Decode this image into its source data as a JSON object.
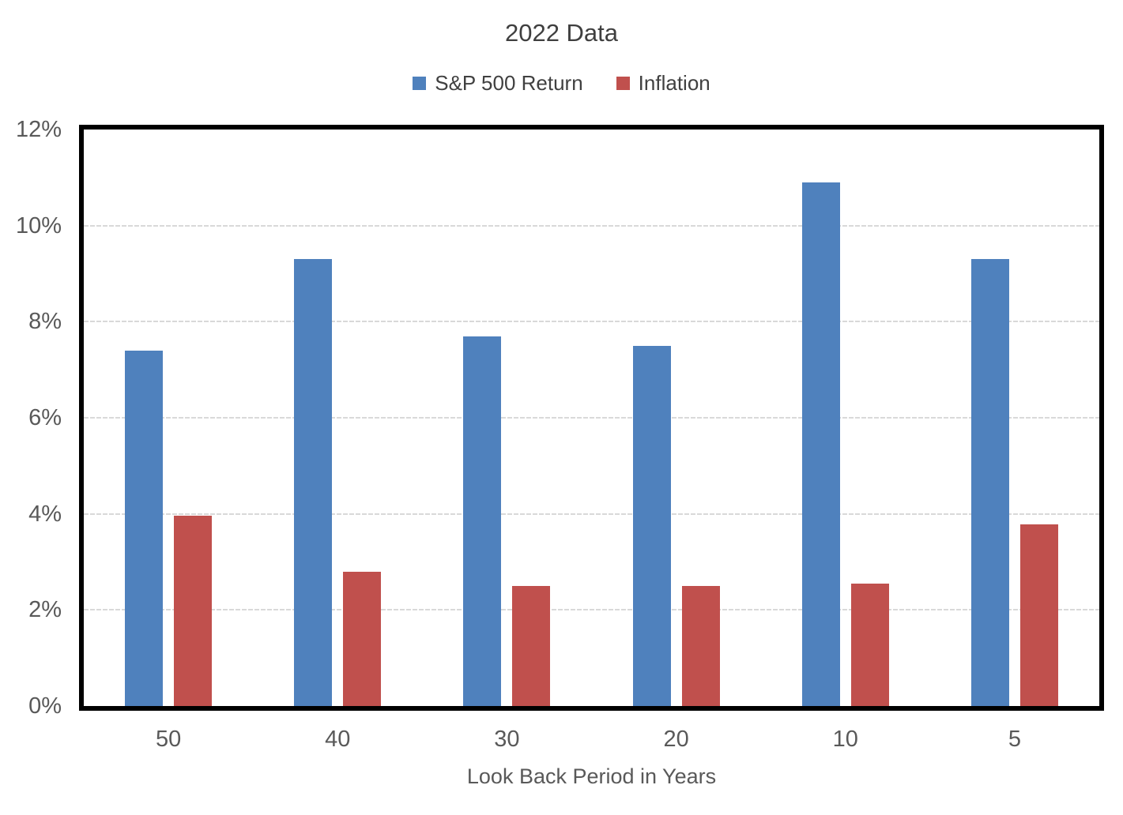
{
  "chart_data": {
    "type": "bar",
    "title": "2022 Data",
    "categories": [
      "50",
      "40",
      "30",
      "20",
      "10",
      "5"
    ],
    "series": [
      {
        "name": "S&P 500 Return",
        "color": "#4F81BD",
        "values": [
          7.4,
          9.3,
          7.7,
          7.5,
          10.9,
          9.3
        ]
      },
      {
        "name": "Inflation",
        "color": "#C0504D",
        "values": [
          3.97,
          2.8,
          2.5,
          2.5,
          2.55,
          3.78
        ]
      }
    ],
    "xlabel": "Look Back Period in Years",
    "ylabel": "",
    "ylim": [
      0,
      12
    ],
    "ytick_step": 2,
    "ytick_labels": [
      "0%",
      "2%",
      "4%",
      "6%",
      "8%",
      "10%",
      "12%"
    ],
    "grid": true,
    "legend_position": "top",
    "colors": {
      "title_text": "#3f3f3f",
      "legend_text": "#404040",
      "axis_text": "#595959",
      "gridline": "#d9d9d9",
      "plot_border": "#000000",
      "background": "#ffffff"
    }
  }
}
